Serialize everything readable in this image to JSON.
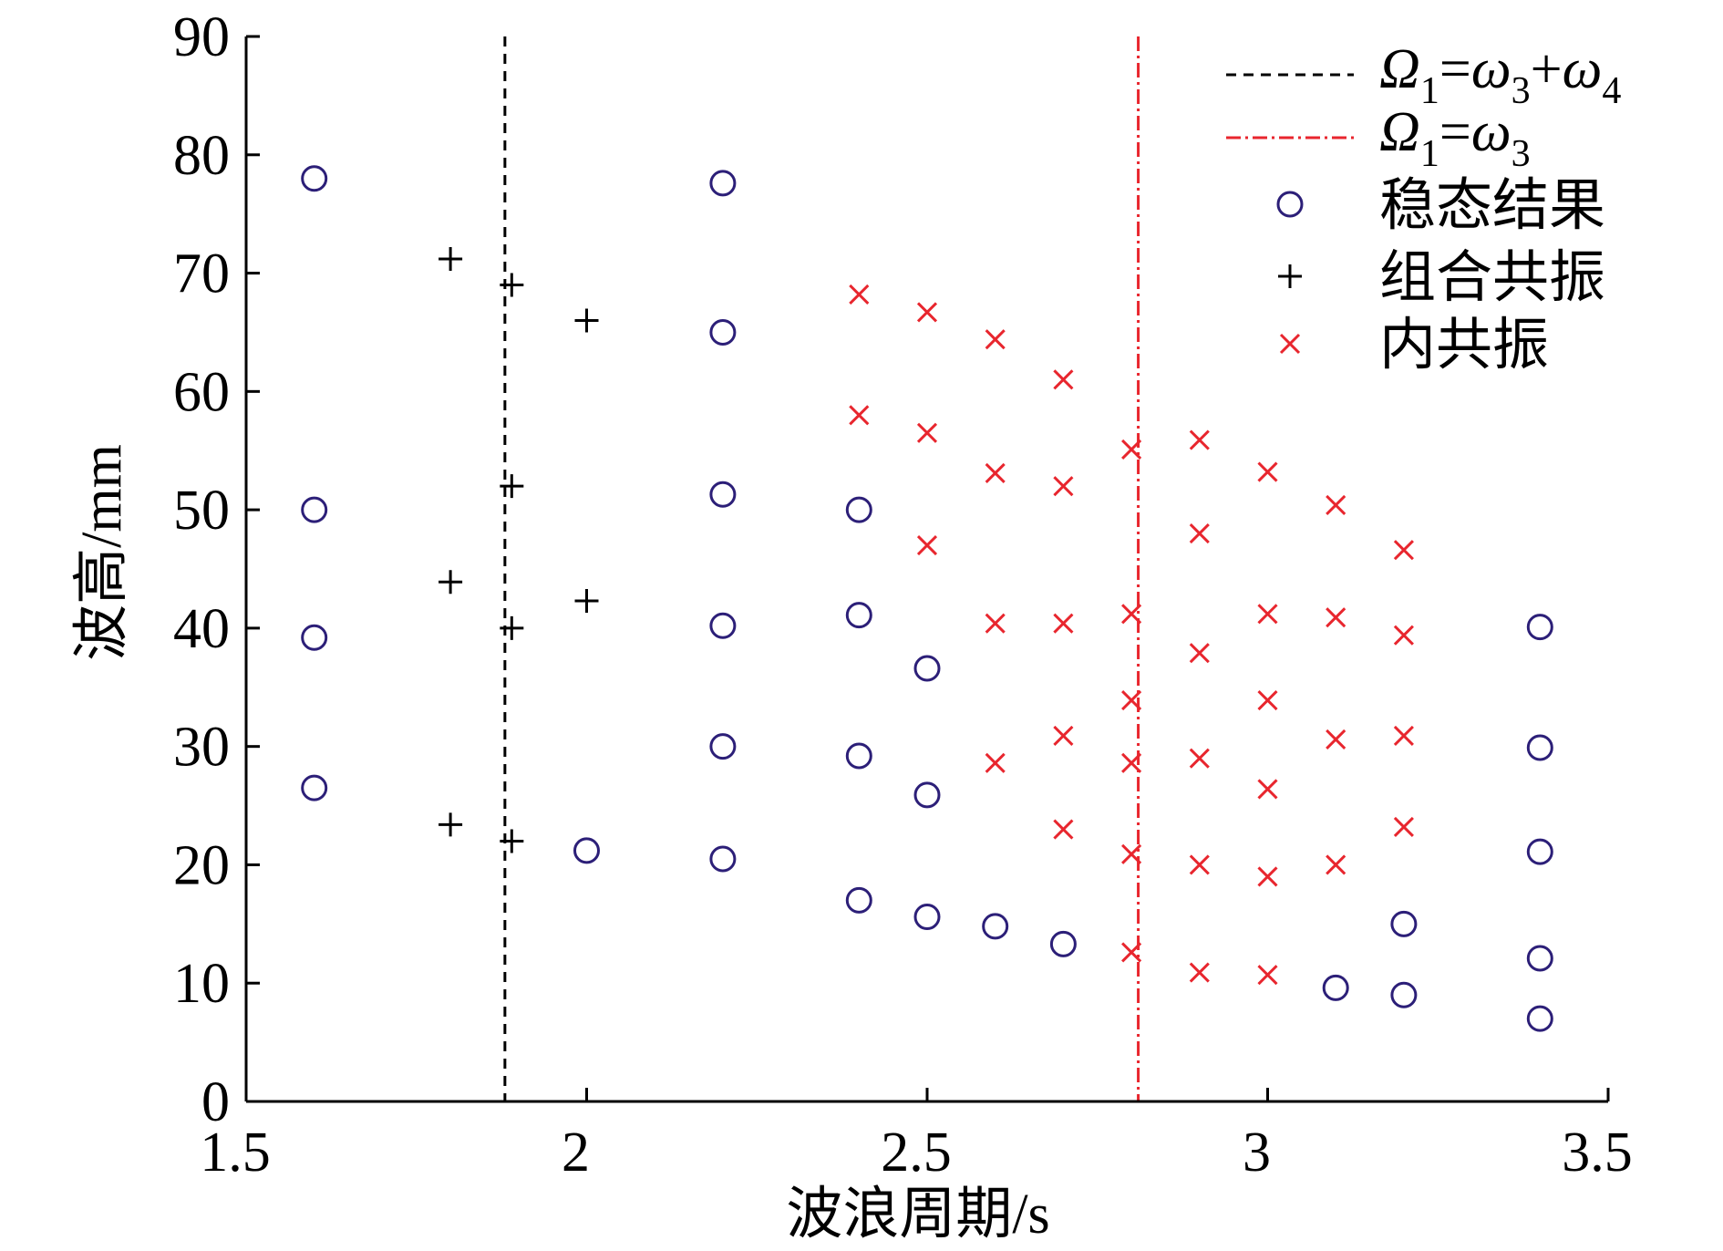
{
  "chart_data": {
    "type": "scatter",
    "xlabel": "波浪周期/s",
    "ylabel": "波高/mm",
    "xlim": [
      1.5,
      3.5
    ],
    "ylim": [
      0,
      90
    ],
    "xticks": [
      1.5,
      2,
      2.5,
      3,
      3.5
    ],
    "xtick_labels": [
      "1.5",
      "2",
      "2.5",
      "3",
      "3.5"
    ],
    "yticks": [
      0,
      10,
      20,
      30,
      40,
      50,
      60,
      70,
      80,
      90
    ],
    "ytick_labels": [
      "0",
      "10",
      "20",
      "30",
      "40",
      "50",
      "60",
      "70",
      "80",
      "90"
    ],
    "grid": false,
    "legend_position": "top-right",
    "reference_lines": [
      {
        "name": "Ω1=ω3+ω4",
        "x": 1.88,
        "line_style": "dashed",
        "color": "#000000"
      },
      {
        "name": "Ω1=ω3",
        "x": 2.81,
        "line_style": "dash-dot",
        "color": "#e8262e"
      }
    ],
    "series": [
      {
        "name": "稳态结果",
        "marker": "circle",
        "color": "#2c1f78",
        "points": [
          [
            1.6,
            78.0
          ],
          [
            1.6,
            50.0
          ],
          [
            1.6,
            39.2
          ],
          [
            1.6,
            26.5
          ],
          [
            2.0,
            21.2
          ],
          [
            2.2,
            77.6
          ],
          [
            2.2,
            65.0
          ],
          [
            2.2,
            51.3
          ],
          [
            2.2,
            40.2
          ],
          [
            2.2,
            30.0
          ],
          [
            2.2,
            20.5
          ],
          [
            2.4,
            50.0
          ],
          [
            2.4,
            41.1
          ],
          [
            2.4,
            29.2
          ],
          [
            2.4,
            17.0
          ],
          [
            2.5,
            36.6
          ],
          [
            2.5,
            25.9
          ],
          [
            2.5,
            15.6
          ],
          [
            2.6,
            14.8
          ],
          [
            2.7,
            13.3
          ],
          [
            3.1,
            9.6
          ],
          [
            3.2,
            15.0
          ],
          [
            3.2,
            9.0
          ],
          [
            3.4,
            40.1
          ],
          [
            3.4,
            29.9
          ],
          [
            3.4,
            21.1
          ],
          [
            3.4,
            12.1
          ],
          [
            3.4,
            7.0
          ]
        ]
      },
      {
        "name": "组合共振",
        "marker": "plus",
        "color": "#000000",
        "points": [
          [
            1.8,
            71.2
          ],
          [
            1.8,
            43.9
          ],
          [
            1.8,
            23.4
          ],
          [
            1.89,
            69.0
          ],
          [
            1.89,
            52.0
          ],
          [
            1.89,
            40.0
          ],
          [
            1.89,
            22.0
          ],
          [
            2.0,
            66.0
          ],
          [
            2.0,
            42.3
          ]
        ]
      },
      {
        "name": "内共振",
        "marker": "x",
        "color": "#e8262e",
        "points": [
          [
            2.4,
            68.2
          ],
          [
            2.4,
            58.0
          ],
          [
            2.5,
            66.7
          ],
          [
            2.5,
            56.5
          ],
          [
            2.5,
            47.0
          ],
          [
            2.6,
            64.4
          ],
          [
            2.6,
            53.1
          ],
          [
            2.6,
            40.4
          ],
          [
            2.6,
            28.6
          ],
          [
            2.7,
            61.0
          ],
          [
            2.7,
            52.0
          ],
          [
            2.7,
            40.4
          ],
          [
            2.7,
            30.9
          ],
          [
            2.7,
            23.0
          ],
          [
            2.8,
            55.1
          ],
          [
            2.8,
            41.2
          ],
          [
            2.8,
            33.9
          ],
          [
            2.8,
            28.6
          ],
          [
            2.8,
            20.9
          ],
          [
            2.8,
            12.6
          ],
          [
            2.9,
            55.9
          ],
          [
            2.9,
            48.0
          ],
          [
            2.9,
            37.9
          ],
          [
            2.9,
            29.0
          ],
          [
            2.9,
            20.0
          ],
          [
            2.9,
            10.9
          ],
          [
            3.0,
            53.2
          ],
          [
            3.0,
            41.2
          ],
          [
            3.0,
            33.9
          ],
          [
            3.0,
            26.4
          ],
          [
            3.0,
            19.0
          ],
          [
            3.0,
            10.7
          ],
          [
            3.1,
            50.4
          ],
          [
            3.1,
            40.9
          ],
          [
            3.1,
            30.6
          ],
          [
            3.1,
            20.0
          ],
          [
            3.2,
            46.6
          ],
          [
            3.2,
            39.4
          ],
          [
            3.2,
            30.9
          ],
          [
            3.2,
            23.2
          ]
        ]
      }
    ]
  }
}
